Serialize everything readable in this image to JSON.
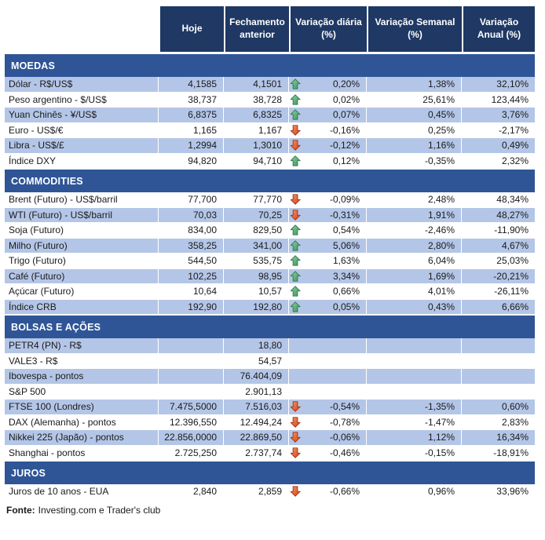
{
  "colors": {
    "header_bg": "#1F3864",
    "section_bg": "#2F5597",
    "row_stripe": "#B4C6E7",
    "arrow_up": "#4EA36A",
    "arrow_down": "#DE4B26",
    "text": "#1a1a1a"
  },
  "footer": {
    "label": "Fonte:",
    "text": "Investing.com e Trader's club"
  },
  "chart_data": {
    "type": "table",
    "columns": [
      "Hoje",
      "Fechamento anterior",
      "Variação diária (%)",
      "Variação Semanal (%)",
      "Variação Anual (%)"
    ],
    "sections": [
      {
        "title": "MOEDAS",
        "first_row_shaded": true,
        "rows": [
          {
            "label": "Dólar - R$/US$",
            "hoje": "4,1585",
            "fechamento": "4,1501",
            "trend": "up",
            "var_diaria": "0,20%",
            "var_semanal": "1,38%",
            "var_anual": "32,10%"
          },
          {
            "label": "Peso argentino - $/US$",
            "hoje": "38,737",
            "fechamento": "38,728",
            "trend": "up",
            "var_diaria": "0,02%",
            "var_semanal": "25,61%",
            "var_anual": "123,44%"
          },
          {
            "label": "Yuan Chinês - ¥/US$",
            "hoje": "6,8375",
            "fechamento": "6,8325",
            "trend": "up",
            "var_diaria": "0,07%",
            "var_semanal": "0,45%",
            "var_anual": "3,76%"
          },
          {
            "label": "Euro - US$/€",
            "hoje": "1,165",
            "fechamento": "1,167",
            "trend": "down",
            "var_diaria": "-0,16%",
            "var_semanal": "0,25%",
            "var_anual": "-2,17%"
          },
          {
            "label": "Libra - US$/£",
            "hoje": "1,2994",
            "fechamento": "1,3010",
            "trend": "down",
            "var_diaria": "-0,12%",
            "var_semanal": "1,16%",
            "var_anual": "0,49%"
          },
          {
            "label": "Índice DXY",
            "hoje": "94,820",
            "fechamento": "94,710",
            "trend": "up",
            "var_diaria": "0,12%",
            "var_semanal": "-0,35%",
            "var_anual": "2,32%"
          }
        ]
      },
      {
        "title": "COMMODITIES",
        "first_row_shaded": false,
        "rows": [
          {
            "label": "Brent (Futuro) - US$/barril",
            "hoje": "77,700",
            "fechamento": "77,770",
            "trend": "down",
            "var_diaria": "-0,09%",
            "var_semanal": "2,48%",
            "var_anual": "48,34%"
          },
          {
            "label": "WTI (Futuro) - US$/barril",
            "hoje": "70,03",
            "fechamento": "70,25",
            "trend": "down",
            "var_diaria": "-0,31%",
            "var_semanal": "1,91%",
            "var_anual": "48,27%"
          },
          {
            "label": "Soja (Futuro)",
            "hoje": "834,00",
            "fechamento": "829,50",
            "trend": "up",
            "var_diaria": "0,54%",
            "var_semanal": "-2,46%",
            "var_anual": "-11,90%"
          },
          {
            "label": "Milho (Futuro)",
            "hoje": "358,25",
            "fechamento": "341,00",
            "trend": "up",
            "var_diaria": "5,06%",
            "var_semanal": "2,80%",
            "var_anual": "4,67%"
          },
          {
            "label": "Trigo (Futuro)",
            "hoje": "544,50",
            "fechamento": "535,75",
            "trend": "up",
            "var_diaria": "1,63%",
            "var_semanal": "6,04%",
            "var_anual": "25,03%"
          },
          {
            "label": "Café (Futuro)",
            "hoje": "102,25",
            "fechamento": "98,95",
            "trend": "up",
            "var_diaria": "3,34%",
            "var_semanal": "1,69%",
            "var_anual": "-20,21%"
          },
          {
            "label": "Açúcar (Futuro)",
            "hoje": "10,64",
            "fechamento": "10,57",
            "trend": "up",
            "var_diaria": "0,66%",
            "var_semanal": "4,01%",
            "var_anual": "-26,11%"
          },
          {
            "label": "Índice CRB",
            "hoje": "192,90",
            "fechamento": "192,80",
            "trend": "up",
            "var_diaria": "0,05%",
            "var_semanal": "0,43%",
            "var_anual": "6,66%"
          }
        ]
      },
      {
        "title": "BOLSAS E AÇÕES",
        "first_row_shaded": true,
        "rows": [
          {
            "label": "PETR4 (PN) - R$",
            "hoje": "",
            "fechamento": "18,80",
            "trend": "",
            "var_diaria": "",
            "var_semanal": "",
            "var_anual": ""
          },
          {
            "label": "VALE3 - R$",
            "hoje": "",
            "fechamento": "54,57",
            "trend": "",
            "var_diaria": "",
            "var_semanal": "",
            "var_anual": ""
          },
          {
            "label": "Ibovespa - pontos",
            "hoje": "",
            "fechamento": "76.404,09",
            "trend": "",
            "var_diaria": "",
            "var_semanal": "",
            "var_anual": ""
          },
          {
            "label": "S&P 500",
            "hoje": "",
            "fechamento": "2.901,13",
            "trend": "",
            "var_diaria": "",
            "var_semanal": "",
            "var_anual": ""
          },
          {
            "label": "FTSE 100 (Londres)",
            "hoje": "7.475,5000",
            "fechamento": "7.516,03",
            "trend": "down",
            "var_diaria": "-0,54%",
            "var_semanal": "-1,35%",
            "var_anual": "0,60%"
          },
          {
            "label": "DAX (Alemanha) - pontos",
            "hoje": "12.396,550",
            "fechamento": "12.494,24",
            "trend": "down",
            "var_diaria": "-0,78%",
            "var_semanal": "-1,47%",
            "var_anual": "2,83%"
          },
          {
            "label": "Nikkei 225 (Japão) - pontos",
            "hoje": "22.856,0000",
            "fechamento": "22.869,50",
            "trend": "down",
            "var_diaria": "-0,06%",
            "var_semanal": "1,12%",
            "var_anual": "16,34%"
          },
          {
            "label": "Shanghai - pontos",
            "hoje": "2.725,250",
            "fechamento": "2.737,74",
            "trend": "down",
            "var_diaria": "-0,46%",
            "var_semanal": "-0,15%",
            "var_anual": "-18,91%"
          }
        ]
      },
      {
        "title": "JUROS",
        "first_row_shaded": false,
        "rows": [
          {
            "label": "Juros de 10 anos - EUA",
            "hoje": "2,840",
            "fechamento": "2,859",
            "trend": "down",
            "var_diaria": "-0,66%",
            "var_semanal": "0,96%",
            "var_anual": "33,96%"
          }
        ]
      }
    ]
  }
}
